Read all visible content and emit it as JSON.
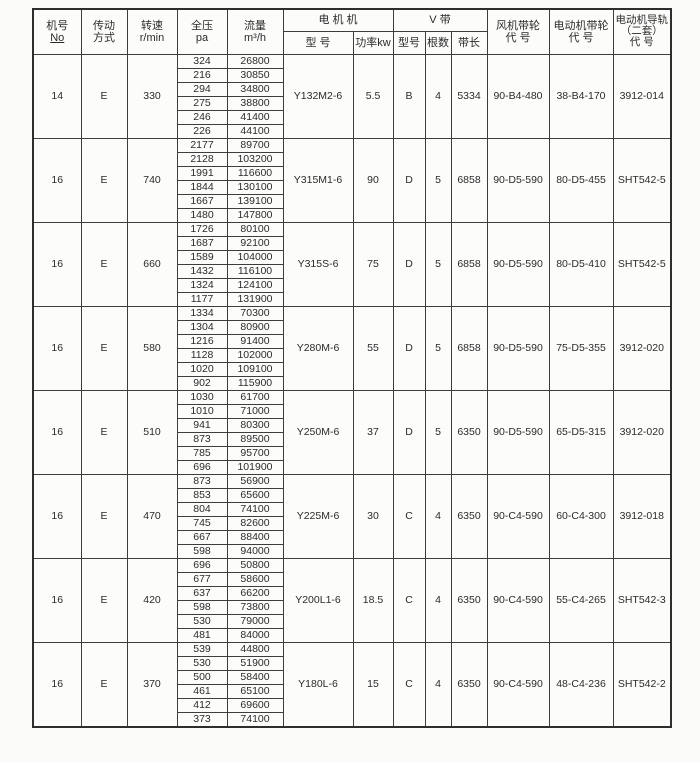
{
  "table": {
    "header": {
      "jihao": {
        "line1": "机号",
        "line2": "No"
      },
      "chuandong": {
        "line1": "传动",
        "line2": "方式"
      },
      "zhuansu": {
        "line1": "转速",
        "line2": "r/min"
      },
      "quanya": {
        "line1": "全压",
        "line2": "pa"
      },
      "liuliang": {
        "line1": "流量",
        "line2": "m³/h"
      },
      "motor_group": "电  机  机",
      "motor_model": "型  号",
      "motor_power": "功率kw",
      "vbelt_group": "V        带",
      "vbelt_model": "型号",
      "vbelt_count": "根数",
      "vbelt_length": "带长",
      "fan_pulley": {
        "line1": "风机带轮",
        "line2": "代  号"
      },
      "motor_pulley": {
        "line1": "电动机带轮",
        "line2": "代  号"
      },
      "motor_rail": {
        "line1": "电动机导轨",
        "line2": "（二套）",
        "line3": "代  号"
      }
    },
    "blocks": [
      {
        "machine_no": "14",
        "drive": "E",
        "speed": "330",
        "rows": [
          [
            "324",
            "26800"
          ],
          [
            "216",
            "30850"
          ],
          [
            "294",
            "34800"
          ],
          [
            "275",
            "38800"
          ],
          [
            "246",
            "41400"
          ],
          [
            "226",
            "44100"
          ]
        ],
        "motor_model": "Y132M2-6",
        "power_kw": "5.5",
        "belt_type": "B",
        "belt_count": "4",
        "belt_length": "5334",
        "fan_pulley_code": "90-B4-480",
        "motor_pulley_code": "38-B4-170",
        "rail_code": "3912-014"
      },
      {
        "machine_no": "16",
        "drive": "E",
        "speed": "740",
        "rows": [
          [
            "2177",
            "89700"
          ],
          [
            "2128",
            "103200"
          ],
          [
            "1991",
            "116600"
          ],
          [
            "1844",
            "130100"
          ],
          [
            "1667",
            "139100"
          ],
          [
            "1480",
            "147800"
          ]
        ],
        "motor_model": "Y315M1-6",
        "power_kw": "90",
        "belt_type": "D",
        "belt_count": "5",
        "belt_length": "6858",
        "fan_pulley_code": "90-D5-590",
        "motor_pulley_code": "80-D5-455",
        "rail_code": "SHT542-5"
      },
      {
        "machine_no": "16",
        "drive": "E",
        "speed": "660",
        "rows": [
          [
            "1726",
            "80100"
          ],
          [
            "1687",
            "92100"
          ],
          [
            "1589",
            "104000"
          ],
          [
            "1432",
            "116100"
          ],
          [
            "1324",
            "124100"
          ],
          [
            "1177",
            "131900"
          ]
        ],
        "motor_model": "Y315S-6",
        "power_kw": "75",
        "belt_type": "D",
        "belt_count": "5",
        "belt_length": "6858",
        "fan_pulley_code": "90-D5-590",
        "motor_pulley_code": "80-D5-410",
        "rail_code": "SHT542-5"
      },
      {
        "machine_no": "16",
        "drive": "E",
        "speed": "580",
        "rows": [
          [
            "1334",
            "70300"
          ],
          [
            "1304",
            "80900"
          ],
          [
            "1216",
            "91400"
          ],
          [
            "1128",
            "102000"
          ],
          [
            "1020",
            "109100"
          ],
          [
            "902",
            "115900"
          ]
        ],
        "motor_model": "Y280M-6",
        "power_kw": "55",
        "belt_type": "D",
        "belt_count": "5",
        "belt_length": "6858",
        "fan_pulley_code": "90-D5-590",
        "motor_pulley_code": "75-D5-355",
        "rail_code": "3912-020"
      },
      {
        "machine_no": "16",
        "drive": "E",
        "speed": "510",
        "rows": [
          [
            "1030",
            "61700"
          ],
          [
            "1010",
            "71000"
          ],
          [
            "941",
            "80300"
          ],
          [
            "873",
            "89500"
          ],
          [
            "785",
            "95700"
          ],
          [
            "696",
            "101900"
          ]
        ],
        "motor_model": "Y250M-6",
        "power_kw": "37",
        "belt_type": "D",
        "belt_count": "5",
        "belt_length": "6350",
        "fan_pulley_code": "90-D5-590",
        "motor_pulley_code": "65-D5-315",
        "rail_code": "3912-020"
      },
      {
        "machine_no": "16",
        "drive": "E",
        "speed": "470",
        "rows": [
          [
            "873",
            "56900"
          ],
          [
            "853",
            "65600"
          ],
          [
            "804",
            "74100"
          ],
          [
            "745",
            "82600"
          ],
          [
            "667",
            "88400"
          ],
          [
            "598",
            "94000"
          ]
        ],
        "motor_model": "Y225M-6",
        "power_kw": "30",
        "belt_type": "C",
        "belt_count": "4",
        "belt_length": "6350",
        "fan_pulley_code": "90-C4-590",
        "motor_pulley_code": "60-C4-300",
        "rail_code": "3912-018"
      },
      {
        "machine_no": "16",
        "drive": "E",
        "speed": "420",
        "rows": [
          [
            "696",
            "50800"
          ],
          [
            "677",
            "58600"
          ],
          [
            "637",
            "66200"
          ],
          [
            "598",
            "73800"
          ],
          [
            "530",
            "79000"
          ],
          [
            "481",
            "84000"
          ]
        ],
        "motor_model": "Y200L1-6",
        "power_kw": "18.5",
        "belt_type": "C",
        "belt_count": "4",
        "belt_length": "6350",
        "fan_pulley_code": "90-C4-590",
        "motor_pulley_code": "55-C4-265",
        "rail_code": "SHT542-3"
      },
      {
        "machine_no": "16",
        "drive": "E",
        "speed": "370",
        "rows": [
          [
            "539",
            "44800"
          ],
          [
            "530",
            "51900"
          ],
          [
            "500",
            "58400"
          ],
          [
            "461",
            "65100"
          ],
          [
            "412",
            "69600"
          ],
          [
            "373",
            "74100"
          ]
        ],
        "motor_model": "Y180L-6",
        "power_kw": "15",
        "belt_type": "C",
        "belt_count": "4",
        "belt_length": "6350",
        "fan_pulley_code": "90-C4-590",
        "motor_pulley_code": "48-C4-236",
        "rail_code": "SHT542-2"
      }
    ]
  }
}
